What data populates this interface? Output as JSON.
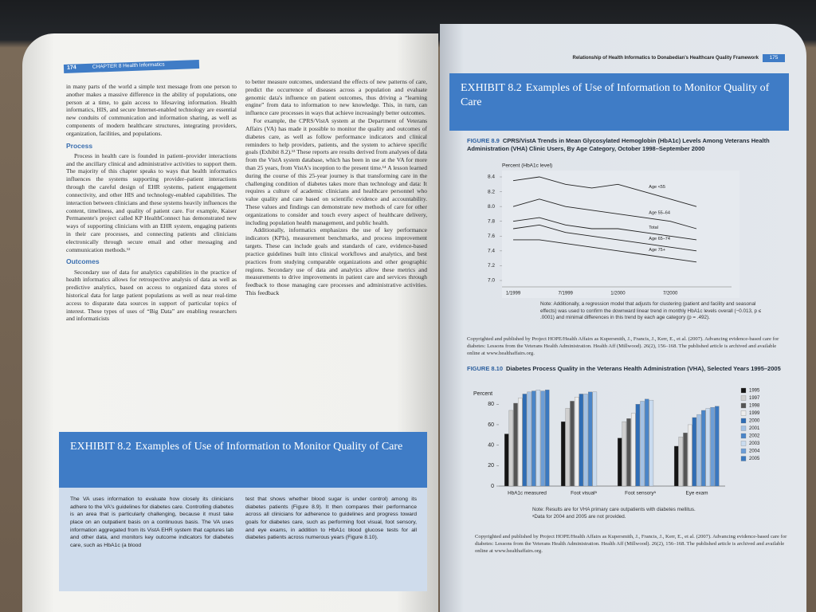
{
  "left_page": {
    "page_number": "174",
    "running_head": "CHAPTER 8 Health Informatics",
    "column_1": [
      {
        "text": "in many parts of the world a simple text message from one person to another makes a massive difference in the ability of populations, one person at a time, to gain access to lifesaving information. Health informatics, HIS, and secure Internet-enabled technology are essential new conduits of communication and information sharing, as well as components of modern healthcare structures, integrating providers, organization, facilities, and populations."
      },
      {
        "heading": "Process"
      },
      {
        "text": "Process in health care is founded in patient–provider interactions and the ancillary clinical and administrative activities to support them. The majority of this chapter speaks to ways that health informatics influences the systems supporting provider–patient interactions through the careful design of EHR systems, patient engagement connectivity, and other HIS and technology-enabled capabilities. The interaction between clinicians and these systems heavily influences the content, timeliness, and quality of patient care. For example, Kaiser Permanente's project called KP HealthConnect has demonstrated new ways of supporting clinicians with an EHR system, engaging patients in their care processes, and connecting patients and clinicians electronically through secure email and other messaging and communication methods.¹²"
      },
      {
        "heading": "Outcomes"
      },
      {
        "text": "Secondary use of data for analytics capabilities in the practice of health informatics allows for retrospective analysis of data as well as predictive analytics, based on access to organized data stores of historical data for large patient populations as well as near real-time access to disparate data sources in support of particular topics of interest. These types of uses of “Big Data” are enabling researchers and informaticists"
      }
    ],
    "column_2": [
      {
        "text": "to better measure outcomes, understand the effects of new patterns of care, predict the occurrence of diseases across a population and evaluate genomic data's influence on patient outcomes, thus driving a “learning engine” from data to information to new knowledge. This, in turn, can influence care processes in ways that achieve increasingly better outcomes."
      },
      {
        "text": "For example, the CPRS/VistA system at the Department of Veterans Affairs (VA) has made it possible to monitor the quality and outcomes of diabetes care, as well as follow performance indicators and clinical reminders to help providers, patients, and the system to achieve specific goals (Exhibit 8.2).¹³ These reports are results derived from analyses of data from the VistA system database, which has been in use at the VA for more than 25 years, from VistA's inception to the present time.¹⁴ A lesson learned during the course of this 25-year journey is that transforming care in the challenging condition of diabetes takes more than technology and data: It requires a culture of academic clinicians and healthcare personnel who value quality and care based on scientific evidence and accountability. These values and findings can demonstrate new methods of care for other organizations to consider and touch every aspect of healthcare delivery, including population health management, and public health."
      },
      {
        "text": "Additionally, informatics emphasizes the use of key performance indicators (KPIs), measurement benchmarks, and process improvement targets. These can include goals and standards of care, evidence-based practice guidelines built into clinical workflows and analytics, and best practices from studying comparable organizations and other geographic regions. Secondary use of data and analytics allow these metrics and measurements to drive improvements in patient care and services through feedback to those managing care processes and administrative activities. This feedback"
      }
    ],
    "exhibit": {
      "label": "EXHIBIT 8.2",
      "title": "Examples of Use of Information to Monitor Quality of Care",
      "column_1": "The VA uses information to evaluate how closely its clinicians adhere to the VA's guidelines for diabetes care. Controlling diabetes is an area that is particularly challenging, because it must take place on an outpatient basis on a continuous basis. The VA uses information aggregated from its VistA EHR system that captures lab and other data, and monitors key outcome indicators for diabetes care, such as HbA1c (a blood",
      "column_2": "test that shows whether blood sugar is under control) among its diabetes patients (Figure 8.9). It then compares their performance across all clinicians for adherence to guidelines and progress toward goals for diabetes care, such as performing foot visual, foot sensory, and eye exams, in addition to HbA1c blood glucose tests for all diabetes patients across numerous years (Figure 8.10)."
    }
  },
  "right_page": {
    "running_head": "Relationship of Health Informatics to Donabedian's Healthcare Quality Framework",
    "page_number": "175",
    "exhibit": {
      "label": "EXHIBIT 8.2",
      "title": "Examples of Use of Information to Monitor Quality of Care"
    },
    "figure_8_9": {
      "type": "line",
      "label": "FIGURE 8.9",
      "title": "CPRS/VistA Trends in Mean Glycosylated Hemoglobin (HbA1c) Levels Among Veterans Health Administration (VHA) Clinic Users, By Age Category, October 1998–September 2000",
      "y_axis_label": "Percent (HbA1c level)",
      "categories": [
        "1/1999",
        null,
        "7/1999",
        null,
        "1/2000",
        null,
        "7/2000",
        null
      ],
      "ylim": [
        7.0,
        8.4
      ],
      "yticks": [
        8.4,
        8.2,
        {
          "value": 8.0,
          "label": "8.0"
        },
        7.8,
        7.6,
        7.4,
        7.2,
        {
          "value": 7.0,
          "label": "7.0"
        }
      ],
      "series": [
        {
          "name": "Age <55",
          "color": "#222222",
          "values": [
            8.35,
            8.4,
            8.3,
            8.25,
            8.3,
            8.2,
            8.1,
            8.0
          ]
        },
        {
          "name": "Age 55–64",
          "color": "#222222",
          "values": [
            8.0,
            8.1,
            8.0,
            7.95,
            7.9,
            7.85,
            7.8,
            7.7
          ]
        },
        {
          "name": "Total",
          "color": "#222222",
          "values": [
            7.8,
            7.85,
            7.75,
            7.7,
            7.7,
            7.65,
            7.6,
            7.55
          ]
        },
        {
          "name": "Age 65–74",
          "color": "#222222",
          "values": [
            7.7,
            7.75,
            7.65,
            7.6,
            7.55,
            7.5,
            7.45,
            7.4
          ]
        },
        {
          "name": "Age 75+",
          "color": "#222222",
          "values": [
            7.55,
            7.55,
            7.5,
            7.45,
            7.4,
            7.35,
            7.3,
            7.25
          ]
        }
      ],
      "note": "Note: Additionally, a regression model that adjusts for clustering (patient and facility and seasonal effects) was used to confirm the downward linear trend in monthly HbA1c levels overall (−0.013, p ≤ .0001) and minimal differences in this trend by each age category (p = .492).",
      "source": "Copyrighted and published by Project HOPE/Health Affairs as Kupersmith, J., Francis, J., Kerr, E., et al. (2007). Advancing evidence-based care for diabetes: Lessons from the Veterans Health Administration. Health Aff (Millwood). 26(2), 156–168. The published article is archived and available online at www.healthaffairs.org."
    },
    "figure_8_10": {
      "type": "bar",
      "label": "FIGURE 8.10",
      "title": "Diabetes Process Quality in the Veterans Health Administration (VHA), Selected Years 1995–2005",
      "y_axis_label": "Percent",
      "categories": [
        "HbA1c measured",
        "Foot visualᵃ",
        "Foot sensoryᵃ",
        "Eye exam"
      ],
      "ylim": [
        0,
        95
      ],
      "yticks": [
        0,
        20,
        40,
        60,
        80
      ],
      "series": [
        {
          "name": "1995",
          "color": "#151515",
          "values": [
            51,
            63,
            47,
            39
          ]
        },
        {
          "name": "1997",
          "color": "#cfcfcf",
          "values": [
            74,
            76,
            63,
            48
          ]
        },
        {
          "name": "1998",
          "color": "#555555",
          "values": [
            81,
            83,
            66,
            52
          ]
        },
        {
          "name": "1999",
          "color": "#ececec",
          "values": [
            86,
            87,
            71,
            60
          ]
        },
        {
          "name": "2000",
          "color": "#2f6db5",
          "values": [
            90,
            90,
            80,
            67
          ]
        },
        {
          "name": "2001",
          "color": "#a3c1e4",
          "values": [
            92,
            90,
            83,
            70
          ]
        },
        {
          "name": "2002",
          "color": "#4a85c8",
          "values": [
            93,
            92,
            85,
            74
          ]
        },
        {
          "name": "2003",
          "color": "#c9dbef",
          "values": [
            94,
            92,
            84,
            76
          ]
        },
        {
          "name": "2004",
          "color": "#6c9dd6",
          "values": [
            93,
            null,
            null,
            77
          ]
        },
        {
          "name": "2005",
          "color": "#3a78c0",
          "values": [
            94,
            null,
            null,
            78
          ]
        }
      ],
      "notes": [
        "Note: Results are for VHA primary care outpatients with diabetes mellitus.",
        "ᵃData for 2004 and 2005 are not provided."
      ],
      "source": "Copyrighted and published by Project HOPE/Health Affairs as Kupersmith, J., Francis, J., Kerr, E., et al. (2007). Advancing evidence-based care for diabetes: Lessons from the Veterans Health Administration. Health Aff (Millwood). 26(2), 156–168. The published article is archived and available online at www.healthaffairs.org."
    }
  }
}
